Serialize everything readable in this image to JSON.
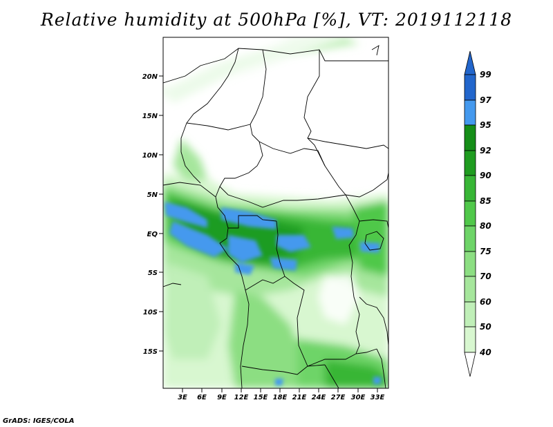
{
  "map": {
    "title": "Relative humidity at 500hPa [%], VT: 2019112118",
    "credit": "GrADS: IGES/COLA",
    "lat_labels": [
      "20N",
      "15N",
      "10N",
      "5N",
      "EQ",
      "5S",
      "10S",
      "15S"
    ],
    "lon_labels": [
      "3E",
      "6E",
      "9E",
      "12E",
      "15E",
      "18E",
      "21E",
      "24E",
      "27E",
      "30E",
      "33E"
    ]
  },
  "legend": {
    "levels": [
      "99",
      "97",
      "95",
      "92",
      "90",
      "85",
      "80",
      "75",
      "70",
      "60",
      "50",
      "40"
    ],
    "colors": {
      "c40": "#f0fff0",
      "c50": "#d8f7d0",
      "c60": "#c0efb8",
      "c70": "#a6e69c",
      "c75": "#8cde82",
      "c80": "#6ed468",
      "c85": "#50c84a",
      "c90": "#38b636",
      "c92": "#1f9c20",
      "c95": "#158e18",
      "c97": "#4499ee",
      "c99": "#2266cc"
    }
  }
}
